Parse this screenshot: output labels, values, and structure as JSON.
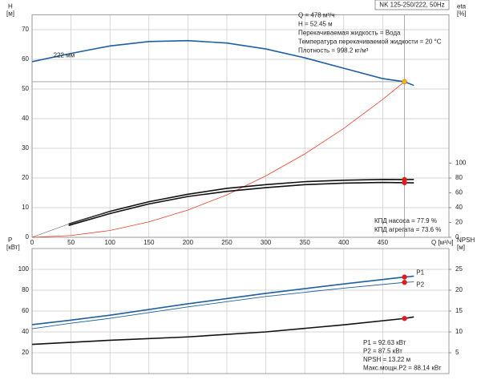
{
  "chart_data": [
    {
      "type": "line",
      "title": "NK 125-250/222, 50Hz",
      "ylabel": "H",
      "ylabel_unit": "[м]",
      "y2label": "eta",
      "y2label_unit": "[%]",
      "xlabel": "Q [м³/ч]",
      "xlim": [
        0,
        535
      ],
      "xticks": [
        0,
        50,
        100,
        150,
        200,
        250,
        300,
        350,
        400,
        450
      ],
      "xtick_labels": true,
      "ylim": [
        0,
        75
      ],
      "yticks": [
        0,
        10,
        20,
        30,
        40,
        50,
        60,
        70
      ],
      "y2lim": [
        0,
        300
      ],
      "y2ticks": [
        0,
        20,
        40,
        60,
        80,
        100
      ],
      "grid": true,
      "series": [
        {
          "name": "222 мм",
          "color": "#1f5fa0",
          "width": 1.6,
          "x": [
            0,
            50,
            100,
            150,
            200,
            250,
            300,
            350,
            400,
            450,
            478,
            490
          ],
          "values": [
            59.2,
            62,
            64.5,
            66,
            66.3,
            65.5,
            63.5,
            60.5,
            57,
            53.5,
            52.45,
            51.2
          ]
        },
        {
          "color": "#e8412c",
          "width": 0.8,
          "x": [
            0,
            50,
            100,
            150,
            200,
            250,
            300,
            350,
            400,
            450,
            478
          ],
          "values": [
            0,
            0.6,
            2.3,
            5.2,
            9.2,
            14.3,
            20.7,
            28.1,
            36.7,
            46.5,
            52.45
          ]
        },
        {
          "color": "#111",
          "width": 1.6,
          "axis": "y2",
          "x": [
            47,
            100,
            150,
            200,
            250,
            300,
            350,
            400,
            450,
            478,
            490
          ],
          "values": [
            18,
            35,
            48,
            58,
            66,
            71,
            75,
            77,
            78,
            77.9,
            78
          ]
        },
        {
          "color": "#111",
          "width": 1.6,
          "axis": "y2",
          "x": [
            47,
            100,
            150,
            200,
            250,
            300,
            350,
            400,
            450,
            478,
            490
          ],
          "values": [
            16,
            32,
            45,
            55,
            62,
            67,
            71,
            73,
            74,
            73.6,
            73.4
          ]
        },
        {
          "color": "#555",
          "width": 0.6,
          "axis": "y2",
          "x": [
            0,
            47,
            100
          ],
          "values": [
            0,
            18,
            35
          ]
        }
      ],
      "markers": [
        {
          "x": 478,
          "y": 52.45,
          "color": "#f5b800"
        },
        {
          "x": 478,
          "y": 77.9,
          "color": "#e8191a",
          "axis": "y2"
        },
        {
          "x": 478,
          "y": 73.6,
          "color": "#e8191a",
          "axis": "y2"
        }
      ],
      "info": [
        "Q = 478 м³/ч",
        "H = 52.45 м",
        "Перекачиваемая жидкость = Вода",
        "Температура перекачиваемой жидкости = 20 °C",
        "Плотность = 998.2 кг/м³"
      ],
      "notes": [
        "КПД насоса = 77.9 %",
        "КПД агрегата = 73.6 %"
      ]
    },
    {
      "type": "line",
      "ylabel": "P",
      "ylabel_unit": "[кВт]",
      "y2label": "NPSH",
      "y2label_unit": "[м]",
      "xlim": [
        0,
        535
      ],
      "xticks": [
        0,
        50,
        100,
        150,
        200,
        250,
        300,
        350,
        400,
        450
      ],
      "xtick_labels": false,
      "ylim": [
        0,
        120
      ],
      "yticks": [
        20,
        40,
        60,
        80,
        100
      ],
      "y2lim": [
        0,
        30
      ],
      "y2ticks": [
        5,
        10,
        15,
        20,
        25
      ],
      "grid": true,
      "series": [
        {
          "name": "P1",
          "color": "#1f5fa0",
          "width": 1.6,
          "x": [
            0,
            47,
            100,
            200,
            300,
            400,
            478,
            490
          ],
          "values": [
            47,
            51,
            56,
            67,
            77,
            86,
            92.63,
            93.5
          ]
        },
        {
          "name": "P2",
          "color": "#1f5fa0",
          "width": 0.9,
          "x": [
            0,
            47,
            100,
            200,
            300,
            400,
            478,
            490
          ],
          "values": [
            43,
            48,
            53,
            64,
            74,
            82,
            87.5,
            88
          ]
        },
        {
          "color": "#111",
          "width": 1.6,
          "axis": "y2",
          "x": [
            0,
            100,
            200,
            300,
            400,
            478,
            490
          ],
          "values": [
            7,
            8,
            8.8,
            10,
            11.7,
            13.22,
            13.6
          ]
        }
      ],
      "markers": [
        {
          "x": 478,
          "y": 92.63,
          "color": "#e8191a"
        },
        {
          "x": 478,
          "y": 87.5,
          "color": "#e8191a"
        },
        {
          "x": 478,
          "y": 13.22,
          "color": "#e8191a",
          "axis": "y2"
        }
      ],
      "notes": [
        "P1 = 92.63 кВт",
        "P2 = 87.5 кВт",
        "NPSH = 13.22 м",
        "Макс.мощн.P2 = 88.14 кВт"
      ]
    }
  ]
}
